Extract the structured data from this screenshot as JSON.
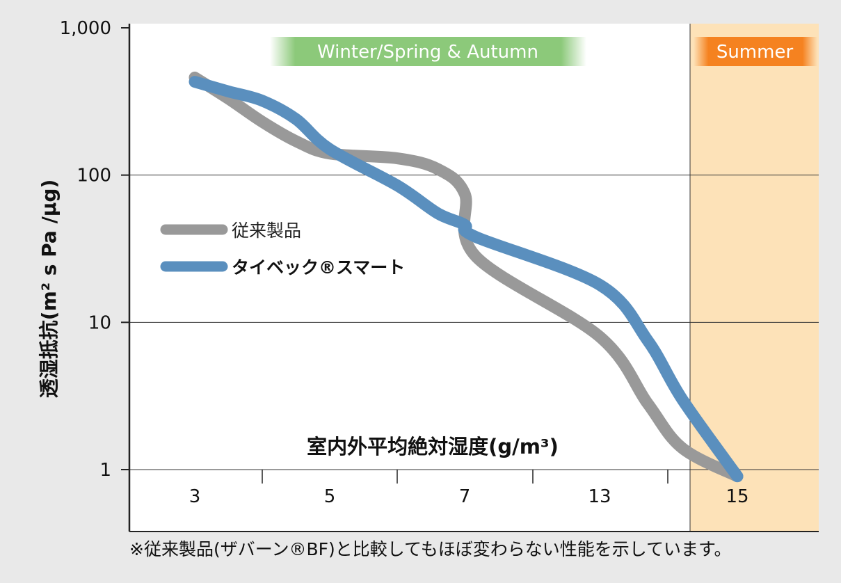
{
  "chart_data": {
    "type": "line",
    "ylabel": "透湿抵抗(m² s Pa /μg)",
    "xlabel": "室内外平均絶対湿度(g/m³)",
    "y_scale": "log",
    "ylim": [
      1,
      1000
    ],
    "y_ticks": [
      "1",
      "10",
      "100",
      "1,000"
    ],
    "categories": [
      "3",
      "5",
      "7",
      "13",
      "15"
    ],
    "grid": true,
    "legend_position": "center-left",
    "bands": [
      {
        "label": "Winter/Spring & Autumn",
        "color": "#8cc97a"
      },
      {
        "label": "Summer",
        "color": "#f58220",
        "fill": "#fde2b8"
      }
    ],
    "series": [
      {
        "name": "従来製品",
        "color": "#999999",
        "points": [
          [
            3,
            460
          ],
          [
            3.5,
            330
          ],
          [
            4,
            230
          ],
          [
            4.5,
            170
          ],
          [
            5,
            140
          ],
          [
            6,
            130
          ],
          [
            6.6,
            110
          ],
          [
            7,
            75
          ],
          [
            7.5,
            28
          ],
          [
            13,
            8
          ],
          [
            13.7,
            2.8
          ],
          [
            14.2,
            1.4
          ],
          [
            15,
            0.9
          ]
        ]
      },
      {
        "name": "タイベック®スマート",
        "color": "#5a8fbe",
        "points": [
          [
            3,
            430
          ],
          [
            3.5,
            370
          ],
          [
            4,
            320
          ],
          [
            4.5,
            240
          ],
          [
            5,
            150
          ],
          [
            6,
            85
          ],
          [
            6.6,
            55
          ],
          [
            7,
            46
          ],
          [
            7.5,
            38
          ],
          [
            13,
            18
          ],
          [
            13.7,
            7.5
          ],
          [
            14.2,
            3
          ],
          [
            15,
            0.9
          ]
        ]
      }
    ]
  },
  "footnote": "※従来製品(ザバーン®BF)と比較してもほぼ変わらない性能を示しています。"
}
